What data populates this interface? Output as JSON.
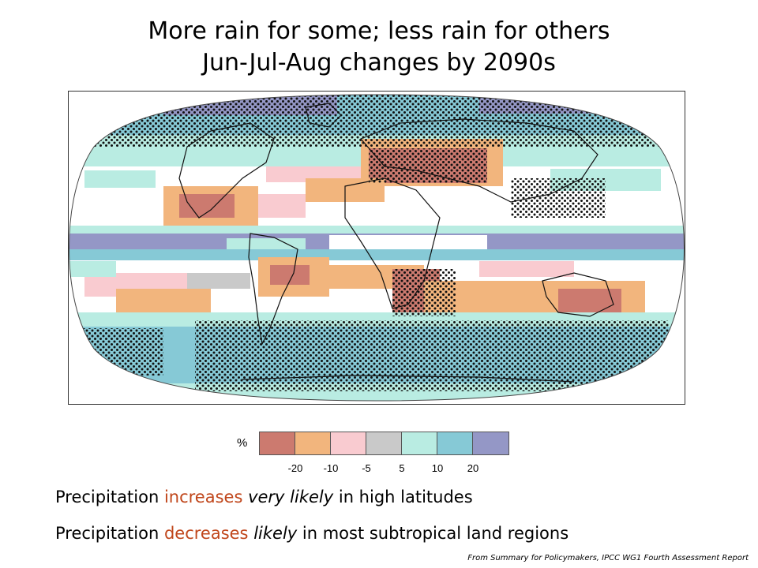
{
  "title": {
    "line1": "More rain for some; less rain for others",
    "line2": "Jun-Jul-Aug changes by 2090s"
  },
  "legend": {
    "unit": "%",
    "colors": [
      "#cc7a6f",
      "#f2b57d",
      "#f9cbd0",
      "#c9c9c9",
      "#b9ece2",
      "#86c9d6",
      "#9497c6"
    ],
    "ticks": [
      "-20",
      "-10",
      "-5",
      "5",
      "10",
      "20"
    ]
  },
  "statements": [
    {
      "prefix": "Precipitation ",
      "keyword": "increases",
      "emphasis": "very likely",
      "suffix": " in high latitudes"
    },
    {
      "prefix": "Precipitation ",
      "keyword": "decreases",
      "emphasis": "likely",
      "suffix": " in most subtropical land regions"
    }
  ],
  "source": "From Summary for Policymakers, IPCC WG1 Fourth Assessment Report",
  "map": {
    "projection": "Robinson",
    "stippling": "stippled where models agree on sign"
  }
}
